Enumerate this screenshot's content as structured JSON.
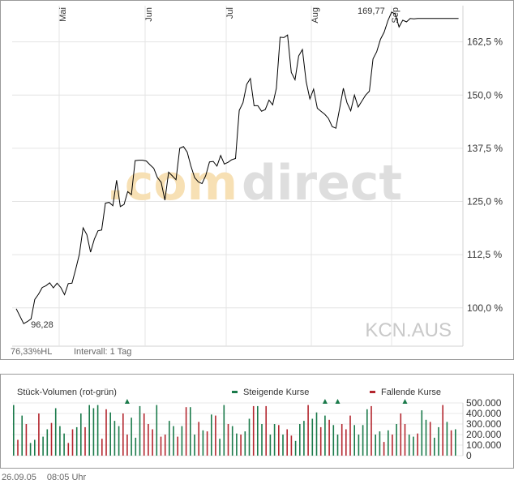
{
  "chart_data": [
    {
      "type": "line",
      "symbol": "KCN.AUS",
      "watermark": {
        "part1": ".com",
        "part2": "direct"
      },
      "months": [
        "Mai",
        "Jun",
        "Jul",
        "Aug",
        "Sep"
      ],
      "y_ticks": [
        "162,5 %",
        "150,0 %",
        "137,5 %",
        "125,0 %",
        "112,5 %",
        "100,0 %"
      ],
      "ylim": [
        91,
        171
      ],
      "min_label": "96,28",
      "max_label": "169,77",
      "footer_left": "76,33%HL",
      "footer_interval": "Intervall: 1 Tag",
      "series": [
        {
          "x": [
            0,
            2,
            3,
            4,
            5,
            6,
            7,
            8,
            9,
            10,
            11,
            12,
            13,
            14,
            15,
            16,
            17,
            18,
            19,
            20,
            21,
            22,
            23,
            24,
            25,
            26,
            27,
            28,
            29,
            30,
            31,
            32,
            33,
            34,
            35,
            36,
            37,
            38,
            39,
            40,
            41,
            42,
            43,
            44,
            45,
            46,
            47,
            48,
            49,
            50,
            51,
            52,
            53,
            54,
            55,
            56,
            57,
            58,
            59,
            60,
            61,
            62,
            63,
            64,
            65,
            66,
            67,
            68,
            69,
            70,
            71,
            72,
            73,
            74,
            75,
            76,
            77,
            78,
            79,
            80,
            81,
            82,
            83,
            84,
            85,
            86,
            87,
            88,
            89,
            90,
            91,
            92,
            93,
            94,
            95,
            96,
            97,
            98,
            99,
            100,
            101,
            102,
            103,
            104,
            105,
            106,
            107,
            108,
            109,
            110,
            111,
            112,
            113,
            114,
            115,
            116,
            117,
            118,
            119
          ],
          "values": [
            99.8,
            96.3,
            96.8,
            97.4,
            102.0,
            103.2,
            104.8,
            105.2,
            105.9,
            104.7,
            105.8,
            104.8,
            103.1,
            105.7,
            105.8,
            109.1,
            112.6,
            118.8,
            117.2,
            113.1,
            116.1,
            118.1,
            118.3,
            124.6,
            124.8,
            124.0,
            130.0,
            123.8,
            124.3,
            127.3,
            126.6,
            134.6,
            134.7,
            134.7,
            134.5,
            133.6,
            132.8,
            130.6,
            129.5,
            125.3,
            131.9,
            131.0,
            130.1,
            137.5,
            137.9,
            136.6,
            133.3,
            130.6,
            129.6,
            129.2,
            131.1,
            134.3,
            134.4,
            133.3,
            135.8,
            133.8,
            134.2,
            134.8,
            135.1,
            146.4,
            148.2,
            152.5,
            153.9,
            147.5,
            147.5,
            146.2,
            146.6,
            148.8,
            147.7,
            151.6,
            163.6,
            163.5,
            164.1,
            155.3,
            153.6,
            159.2,
            160.7,
            153.2,
            149.1,
            151.4,
            146.9,
            146.2,
            145.5,
            144.5,
            142.6,
            142.2,
            146.8,
            151.6,
            148.2,
            146.3,
            150.0,
            147.2,
            148.6,
            150.0,
            150.9,
            158.5,
            160.2,
            163.1,
            164.8,
            167.5,
            169.5,
            169.0,
            166.0,
            167.6,
            167.2,
            168.0,
            167.9,
            168.0,
            168.0,
            168.0,
            168.0,
            168.0,
            168.0,
            168.0,
            168.0,
            168.0,
            168.0,
            168.0,
            168.0
          ]
        }
      ]
    },
    {
      "type": "bar",
      "title": "Stück-Volumen (rot-grün)",
      "legend": [
        {
          "label": "Steigende Kurse",
          "color": "#1a7a4a"
        },
        {
          "label": "Fallende Kurse",
          "color": "#b3262e"
        }
      ],
      "y_ticks": [
        "500.000",
        "400.000",
        "300.000",
        "200.000",
        "100.000",
        "0"
      ],
      "ylim": [
        0,
        500000
      ],
      "up_color": "#1a7a4a",
      "down_color": "#b3262e",
      "values": [
        480000,
        150000,
        380000,
        300000,
        120000,
        150000,
        400000,
        180000,
        250000,
        310000,
        450000,
        280000,
        210000,
        120000,
        250000,
        270000,
        400000,
        270000,
        480000,
        450000,
        480000,
        160000,
        440000,
        410000,
        330000,
        280000,
        400000,
        200000,
        360000,
        170000,
        470000,
        400000,
        300000,
        250000,
        480000,
        180000,
        200000,
        330000,
        280000,
        180000,
        280000,
        460000,
        460000,
        200000,
        320000,
        240000,
        230000,
        390000,
        380000,
        160000,
        480000,
        300000,
        280000,
        210000,
        200000,
        230000,
        350000,
        470000,
        470000,
        300000,
        470000,
        200000,
        300000,
        290000,
        200000,
        250000,
        190000,
        140000,
        300000,
        330000,
        480000,
        350000,
        410000,
        270000,
        380000,
        340000,
        290000,
        200000,
        300000,
        250000,
        380000,
        290000,
        200000,
        290000,
        440000,
        470000,
        200000,
        230000,
        130000,
        240000,
        200000,
        300000,
        400000,
        300000,
        200000,
        180000,
        210000,
        430000,
        340000,
        320000,
        170000,
        270000,
        480000,
        320000,
        240000,
        250000
      ],
      "directions": [
        "u",
        "d",
        "u",
        "d",
        "u",
        "u",
        "d",
        "u",
        "u",
        "d",
        "u",
        "u",
        "u",
        "d",
        "d",
        "u",
        "u",
        "d",
        "u",
        "u",
        "u",
        "d",
        "d",
        "u",
        "u",
        "u",
        "d",
        "d",
        "u",
        "u",
        "u",
        "d",
        "d",
        "d",
        "u",
        "d",
        "d",
        "u",
        "u",
        "d",
        "u",
        "d",
        "u",
        "u",
        "d",
        "u",
        "d",
        "u",
        "d",
        "u",
        "u",
        "d",
        "u",
        "u",
        "d",
        "u",
        "u",
        "d",
        "u",
        "u",
        "d",
        "u",
        "u",
        "d",
        "u",
        "d",
        "d",
        "u",
        "u",
        "u",
        "d",
        "u",
        "u",
        "d",
        "u",
        "d",
        "u",
        "u",
        "d",
        "d",
        "d",
        "u",
        "u",
        "u",
        "u",
        "d",
        "u",
        "u",
        "d",
        "u",
        "d",
        "u",
        "d",
        "d",
        "u",
        "u",
        "d",
        "u",
        "u",
        "d",
        "u",
        "u",
        "d",
        "u",
        "d",
        "u"
      ],
      "overflow_markers": [
        27,
        74,
        77,
        93
      ]
    }
  ],
  "footer": {
    "date": "26.09.05",
    "time": "08:05 Uhr"
  }
}
